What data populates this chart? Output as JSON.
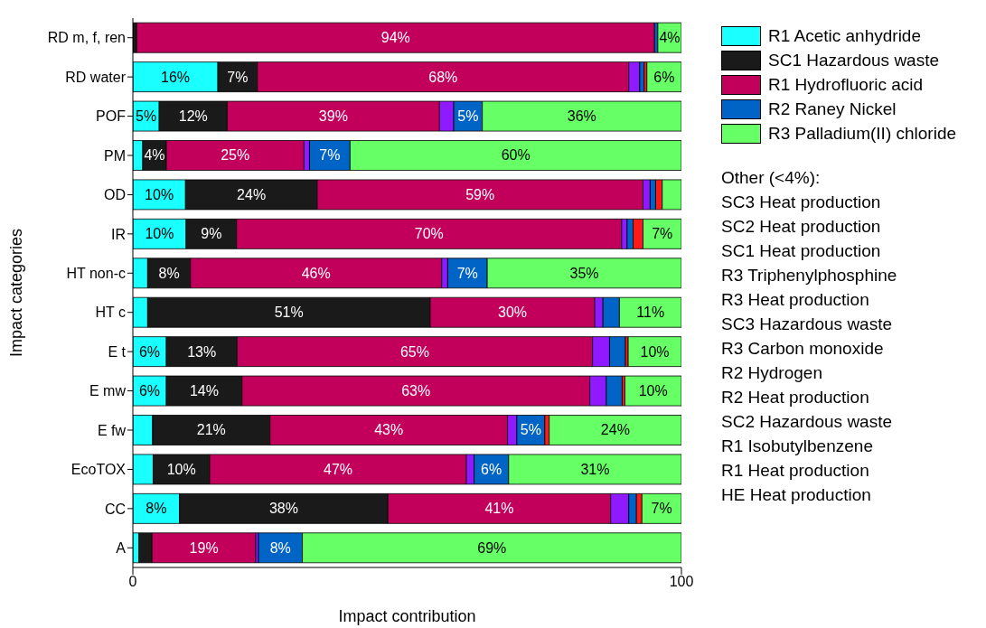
{
  "chart_data": {
    "type": "bar",
    "orientation": "horizontal",
    "stacked": true,
    "xlabel": "Impact contribution",
    "ylabel": "Impact categories",
    "categories": [
      "RD m, f, ren",
      "RD water",
      "POF",
      "PM",
      "OD",
      "IR",
      "HT non-c",
      "HT c",
      "E t",
      "E mw",
      "E fw",
      "EcoTOX",
      "CC",
      "A"
    ],
    "xlim": [
      0,
      100
    ],
    "xticks": [
      0,
      100
    ],
    "legend": "top right",
    "series": [
      {
        "name": "R1 Acetic anhydride",
        "color": "#1affff",
        "values": [
          0,
          15.5,
          4.8,
          1.8,
          9.6,
          9.7,
          2.7,
          2.7,
          6.1,
          6.1,
          3.6,
          3.7,
          8.5,
          1.1
        ],
        "value_labels": [
          null,
          "16%",
          "5%",
          null,
          "10%",
          "10%",
          null,
          null,
          "6%",
          "6%",
          null,
          null,
          "8%",
          null
        ]
      },
      {
        "name": "SC1 Hazardous waste",
        "color": "#1a1a1a",
        "values": [
          0.7,
          7.2,
          12.4,
          4.3,
          24.0,
          9.2,
          7.8,
          51.5,
          12.9,
          13.8,
          21.4,
          10.3,
          38.0,
          2.4
        ],
        "value_labels": [
          null,
          "7%",
          "12%",
          "4%",
          "24%",
          "9%",
          "8%",
          "51%",
          "13%",
          "14%",
          "21%",
          "10%",
          "38%",
          null
        ]
      },
      {
        "name": "R1 Hydrofluoric acid",
        "color": "#c2005c",
        "values": [
          94.4,
          67.7,
          38.7,
          25.1,
          59.4,
          70.2,
          45.8,
          30.0,
          64.8,
          63.4,
          43.3,
          46.8,
          40.6,
          18.9
        ],
        "value_labels": [
          "94%",
          "68%",
          "39%",
          "25%",
          "59%",
          "70%",
          "46%",
          "30%",
          "65%",
          "63%",
          "43%",
          "47%",
          "41%",
          "19%"
        ]
      },
      {
        "color": "#8f1aff",
        "values": [
          0,
          2.0,
          2.6,
          1.0,
          1.3,
          1.0,
          1.1,
          1.5,
          3.1,
          3.0,
          1.7,
          1.4,
          3.3,
          0.5
        ]
      },
      {
        "name": "R2 Raney Nickel",
        "color": "#0063c6",
        "values": [
          0.6,
          0.8,
          5.2,
          7.4,
          1.0,
          1.1,
          7.2,
          3.0,
          2.9,
          2.9,
          5.1,
          6.3,
          1.4,
          8.0
        ],
        "value_labels": [
          null,
          null,
          "5%",
          "7%",
          null,
          null,
          "7%",
          null,
          null,
          null,
          "5%",
          "6%",
          null,
          "8%"
        ]
      },
      {
        "color": "#ff1a1a",
        "values": [
          0,
          0.5,
          0,
          0,
          1.2,
          1.8,
          0,
          0,
          0.5,
          0.5,
          0.8,
          0,
          1.0,
          0
        ]
      },
      {
        "name": "R3 Palladium(II) chloride",
        "color": "#66ff66",
        "values": [
          4.3,
          6.3,
          36.3,
          60.4,
          3.5,
          7.0,
          35.4,
          11.3,
          9.7,
          10.3,
          24.1,
          31.5,
          7.2,
          69.1
        ],
        "value_labels": [
          "4%",
          "6%",
          "36%",
          "60%",
          null,
          "7%",
          "35%",
          "11%",
          "10%",
          "10%",
          "24%",
          "31%",
          "7%",
          "69%"
        ]
      }
    ],
    "annotations": [
      "Other (<4%):",
      "SC3 Heat production",
      "SC2 Heat production",
      "SC1 Heat production",
      "R3 Triphenylphosphine",
      "R3 Heat production",
      "SC3 Hazardous waste",
      "R3 Carbon monoxide",
      "R2 Hydrogen",
      "R2 Heat production",
      "SC2 Hazardous waste",
      "R1 Isobutylbenzene",
      "R1 Heat production",
      "HE Heat production"
    ]
  }
}
